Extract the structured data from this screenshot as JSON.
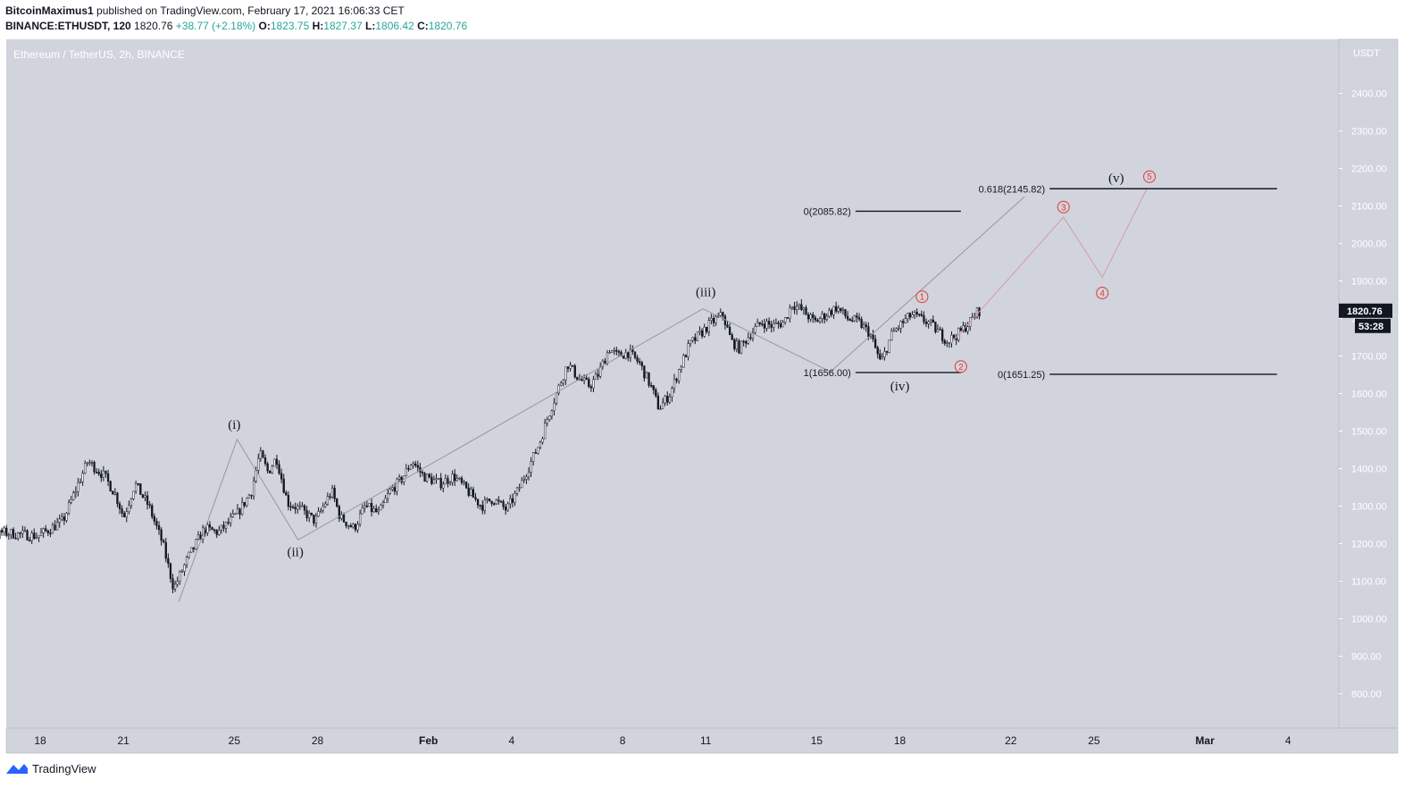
{
  "header": {
    "author": "BitcoinMaximus1",
    "published_text": "published on TradingView.com, February 17, 2021 16:06:33 CET",
    "symbol": "BINANCE:ETHUSDT, 120",
    "price": "1820.76",
    "change": "+38.77 (+2.18%)",
    "o_label": "O:",
    "o_value": "1823.75",
    "h_label": "H:",
    "h_value": "1827.37",
    "l_label": "L:",
    "l_value": "1806.42",
    "c_label": "C:",
    "c_value": "1820.76"
  },
  "footer": {
    "brand": "TradingView"
  },
  "colors": {
    "background": "#d1d4dc",
    "candle": "#131722",
    "wave_path": "#9598a1",
    "projection": "#d49aa8",
    "red_label": "#e53935",
    "price_tag": "#131722",
    "up_text": "#26a69a"
  },
  "chart_data": {
    "type": "candlestick",
    "title": "Ethereum / TetherUS, 2h, BINANCE",
    "currency": "USDT",
    "ylim": [
      700,
      2500
    ],
    "y_ticks": [
      800,
      900,
      1000,
      1100,
      1200,
      1300,
      1400,
      1500,
      1600,
      1700,
      1800,
      1900,
      2000,
      2100,
      2200,
      2300,
      2400
    ],
    "y_tick_labels": [
      "800.00",
      "900.00",
      "1000.00",
      "1100.00",
      "1200.00",
      "1300.00",
      "1400.00",
      "1500.00",
      "1600.00",
      "1700.00",
      "1800.00",
      "1900.00",
      "2000.00",
      "2100.00",
      "2200.00",
      "2300.00",
      "2400.00"
    ],
    "x_range_days": [
      -3.45,
      44.6
    ],
    "x_ticks": [
      {
        "label": "18",
        "day": 0
      },
      {
        "label": "21",
        "day": 3
      },
      {
        "label": "25",
        "day": 7
      },
      {
        "label": "28",
        "day": 10
      },
      {
        "label": "Feb",
        "day": 14
      },
      {
        "label": "4",
        "day": 17
      },
      {
        "label": "8",
        "day": 21
      },
      {
        "label": "11",
        "day": 24
      },
      {
        "label": "15",
        "day": 28
      },
      {
        "label": "18",
        "day": 31
      },
      {
        "label": "22",
        "day": 35
      },
      {
        "label": "25",
        "day": 38
      },
      {
        "label": "Mar",
        "day": 42
      },
      {
        "label": "4",
        "day": 45
      }
    ],
    "price_path": [
      {
        "d": -3.3,
        "p": 1270
      },
      {
        "d": -2.2,
        "p": 1180
      },
      {
        "d": -1.3,
        "p": 1230
      },
      {
        "d": 0,
        "p": 1220
      },
      {
        "d": 0.9,
        "p": 1260
      },
      {
        "d": 1.4,
        "p": 1350
      },
      {
        "d": 1.8,
        "p": 1420
      },
      {
        "d": 2.4,
        "p": 1380
      },
      {
        "d": 2.8,
        "p": 1330
      },
      {
        "d": 3.1,
        "p": 1270
      },
      {
        "d": 3.5,
        "p": 1360
      },
      {
        "d": 4.0,
        "p": 1300
      },
      {
        "d": 4.5,
        "p": 1200
      },
      {
        "d": 4.9,
        "p": 1080
      },
      {
        "d": 5.4,
        "p": 1160
      },
      {
        "d": 6.0,
        "p": 1240
      },
      {
        "d": 6.5,
        "p": 1230
      },
      {
        "d": 6.8,
        "p": 1250
      },
      {
        "d": 7.2,
        "p": 1280
      },
      {
        "d": 7.7,
        "p": 1340
      },
      {
        "d": 8.0,
        "p": 1440
      },
      {
        "d": 8.3,
        "p": 1390
      },
      {
        "d": 8.6,
        "p": 1430
      },
      {
        "d": 9.0,
        "p": 1310
      },
      {
        "d": 9.5,
        "p": 1290
      },
      {
        "d": 10.0,
        "p": 1260
      },
      {
        "d": 10.6,
        "p": 1340
      },
      {
        "d": 10.9,
        "p": 1270
      },
      {
        "d": 11.4,
        "p": 1240
      },
      {
        "d": 11.8,
        "p": 1300
      },
      {
        "d": 12.3,
        "p": 1280
      },
      {
        "d": 12.7,
        "p": 1340
      },
      {
        "d": 13.1,
        "p": 1370
      },
      {
        "d": 13.5,
        "p": 1420
      },
      {
        "d": 13.9,
        "p": 1380
      },
      {
        "d": 14.5,
        "p": 1360
      },
      {
        "d": 15.0,
        "p": 1380
      },
      {
        "d": 15.5,
        "p": 1340
      },
      {
        "d": 16.0,
        "p": 1300
      },
      {
        "d": 16.4,
        "p": 1320
      },
      {
        "d": 16.9,
        "p": 1290
      },
      {
        "d": 17.3,
        "p": 1340
      },
      {
        "d": 17.8,
        "p": 1420
      },
      {
        "d": 18.1,
        "p": 1470
      },
      {
        "d": 18.4,
        "p": 1540
      },
      {
        "d": 18.8,
        "p": 1620
      },
      {
        "d": 19.1,
        "p": 1680
      },
      {
        "d": 19.5,
        "p": 1640
      },
      {
        "d": 19.9,
        "p": 1620
      },
      {
        "d": 20.2,
        "p": 1650
      },
      {
        "d": 20.6,
        "p": 1720
      },
      {
        "d": 20.9,
        "p": 1700
      },
      {
        "d": 21.3,
        "p": 1710
      },
      {
        "d": 21.7,
        "p": 1680
      },
      {
        "d": 22.1,
        "p": 1620
      },
      {
        "d": 22.4,
        "p": 1560
      },
      {
        "d": 22.8,
        "p": 1600
      },
      {
        "d": 23.1,
        "p": 1660
      },
      {
        "d": 23.5,
        "p": 1730
      },
      {
        "d": 23.9,
        "p": 1760
      },
      {
        "d": 24.3,
        "p": 1790
      },
      {
        "d": 24.7,
        "p": 1810
      },
      {
        "d": 25.0,
        "p": 1740
      },
      {
        "d": 25.3,
        "p": 1720
      },
      {
        "d": 25.7,
        "p": 1760
      },
      {
        "d": 26.1,
        "p": 1790
      },
      {
        "d": 26.5,
        "p": 1780
      },
      {
        "d": 26.9,
        "p": 1790
      },
      {
        "d": 27.2,
        "p": 1840
      },
      {
        "d": 27.6,
        "p": 1820
      },
      {
        "d": 28.0,
        "p": 1790
      },
      {
        "d": 28.4,
        "p": 1810
      },
      {
        "d": 28.8,
        "p": 1830
      },
      {
        "d": 29.2,
        "p": 1800
      },
      {
        "d": 29.6,
        "p": 1790
      },
      {
        "d": 30.0,
        "p": 1760
      },
      {
        "d": 30.4,
        "p": 1680
      },
      {
        "d": 30.8,
        "p": 1760
      },
      {
        "d": 31.2,
        "p": 1790
      },
      {
        "d": 31.5,
        "p": 1810
      },
      {
        "d": 31.8,
        "p": 1800
      },
      {
        "d": 32.1,
        "p": 1790
      },
      {
        "d": 32.4,
        "p": 1770
      },
      {
        "d": 32.8,
        "p": 1740
      },
      {
        "d": 33.2,
        "p": 1760
      },
      {
        "d": 33.6,
        "p": 1790
      },
      {
        "d": 33.9,
        "p": 1820
      }
    ],
    "wave_path": [
      {
        "d": 5.0,
        "p": 1045
      },
      {
        "d": 7.1,
        "p": 1478
      },
      {
        "d": 9.3,
        "p": 1210
      },
      {
        "d": 23.9,
        "p": 1826
      },
      {
        "d": 28.5,
        "p": 1658
      },
      {
        "d": 35.5,
        "p": 2125
      }
    ],
    "projection_path": [
      {
        "d": 32.8,
        "p": 1730
      },
      {
        "d": 36.9,
        "p": 2070
      },
      {
        "d": 38.3,
        "p": 1910
      },
      {
        "d": 39.9,
        "p": 2145
      }
    ],
    "wave_labels": [
      {
        "label": "(i)",
        "d": 7.0,
        "p": 1518,
        "style": "dark"
      },
      {
        "label": "(ii)",
        "d": 9.2,
        "p": 1178,
        "style": "dark"
      },
      {
        "label": "(iii)",
        "d": 24.0,
        "p": 1872,
        "style": "dark"
      },
      {
        "label": "(iv)",
        "d": 31.0,
        "p": 1620,
        "style": "dark"
      },
      {
        "label": "(v)",
        "d": 38.8,
        "p": 2175,
        "style": "dark"
      },
      {
        "label": "1",
        "d": 31.8,
        "p": 1858,
        "style": "red"
      },
      {
        "label": "2",
        "d": 33.2,
        "p": 1672,
        "style": "red"
      },
      {
        "label": "3",
        "d": 36.9,
        "p": 2097,
        "style": "red"
      },
      {
        "label": "4",
        "d": 38.3,
        "p": 1868,
        "style": "red"
      },
      {
        "label": "5",
        "d": 40.0,
        "p": 2178,
        "style": "red"
      }
    ],
    "levels": [
      {
        "label": "0(2085.82)",
        "price": 2085.82,
        "d_start": 29.4,
        "d_end": 33.2
      },
      {
        "label": "1(1656.00)",
        "price": 1656.0,
        "d_start": 29.4,
        "d_end": 33.2
      },
      {
        "label": "0.618(2145.82)",
        "price": 2145.82,
        "d_start": 36.4,
        "d_end": 44.6
      },
      {
        "label": "0(1651.25)",
        "price": 1651.25,
        "d_start": 36.4,
        "d_end": 44.6
      }
    ],
    "last_price": {
      "value": 1820.76,
      "label": "1820.76",
      "countdown": "53:28"
    }
  }
}
